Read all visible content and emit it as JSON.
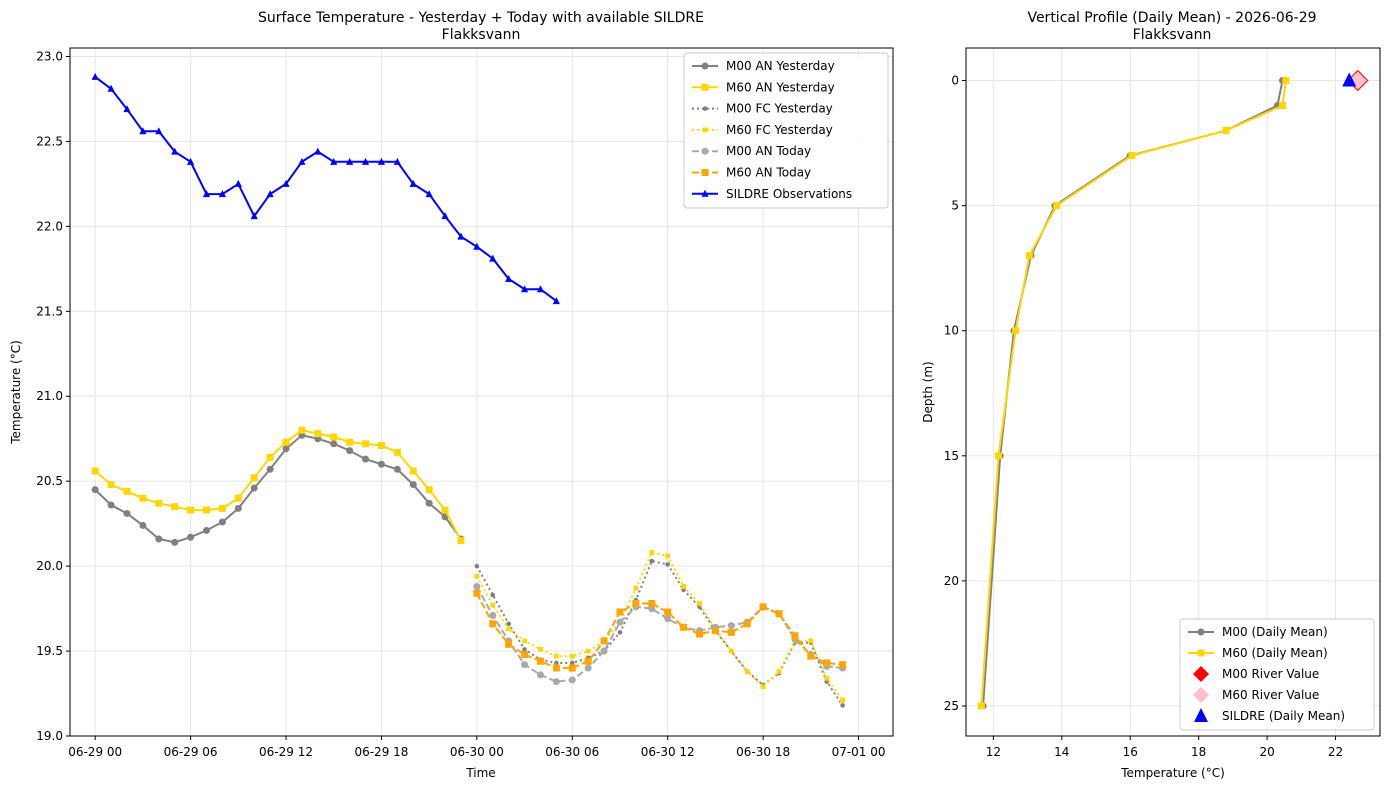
{
  "chart_data": [
    {
      "type": "line",
      "title": "Surface Temperature - Yesterday + Today with available SILDRE",
      "subtitle": "Flakksvann",
      "xlabel": "Time",
      "ylabel": "Temperature (°C)",
      "xlim": [
        "2026-06-28T22:25",
        "2026-07-01T02:10"
      ],
      "ylim": [
        19.0,
        23.05
      ],
      "xticks": [
        "06-29 00",
        "06-29 06",
        "06-29 12",
        "06-29 18",
        "06-30 00",
        "06-30 06",
        "06-30 12",
        "06-30 18",
        "07-01 00"
      ],
      "yticks": [
        "19.0",
        "19.5",
        "20.0",
        "20.5",
        "21.0",
        "21.5",
        "22.0",
        "22.5",
        "23.0"
      ],
      "grid": true,
      "legend": "top-right",
      "series": [
        {
          "name": "M00 AN Yesterday",
          "color": "#808080",
          "style": "solid",
          "marker": "circle",
          "x": [
            "2026-06-29T00:00",
            "2026-06-29T01:00",
            "2026-06-29T02:00",
            "2026-06-29T03:00",
            "2026-06-29T04:00",
            "2026-06-29T05:00",
            "2026-06-29T06:00",
            "2026-06-29T07:00",
            "2026-06-29T08:00",
            "2026-06-29T09:00",
            "2026-06-29T10:00",
            "2026-06-29T11:00",
            "2026-06-29T12:00",
            "2026-06-29T13:00",
            "2026-06-29T14:00",
            "2026-06-29T15:00",
            "2026-06-29T16:00",
            "2026-06-29T17:00",
            "2026-06-29T18:00",
            "2026-06-29T19:00",
            "2026-06-29T20:00",
            "2026-06-29T21:00",
            "2026-06-29T22:00",
            "2026-06-29T23:00"
          ],
          "y": [
            20.45,
            20.36,
            20.31,
            20.24,
            20.16,
            20.14,
            20.17,
            20.21,
            20.26,
            20.34,
            20.46,
            20.57,
            20.69,
            20.77,
            20.75,
            20.72,
            20.68,
            20.63,
            20.6,
            20.57,
            20.48,
            20.37,
            20.29,
            20.16
          ]
        },
        {
          "name": "M60 AN Yesterday",
          "color": "#FFD700",
          "style": "solid",
          "marker": "square",
          "x": [
            "2026-06-29T00:00",
            "2026-06-29T01:00",
            "2026-06-29T02:00",
            "2026-06-29T03:00",
            "2026-06-29T04:00",
            "2026-06-29T05:00",
            "2026-06-29T06:00",
            "2026-06-29T07:00",
            "2026-06-29T08:00",
            "2026-06-29T09:00",
            "2026-06-29T10:00",
            "2026-06-29T11:00",
            "2026-06-29T12:00",
            "2026-06-29T13:00",
            "2026-06-29T14:00",
            "2026-06-29T15:00",
            "2026-06-29T16:00",
            "2026-06-29T17:00",
            "2026-06-29T18:00",
            "2026-06-29T19:00",
            "2026-06-29T20:00",
            "2026-06-29T21:00",
            "2026-06-29T22:00",
            "2026-06-29T23:00"
          ],
          "y": [
            20.56,
            20.48,
            20.44,
            20.4,
            20.37,
            20.35,
            20.33,
            20.33,
            20.34,
            20.4,
            20.52,
            20.64,
            20.73,
            20.8,
            20.78,
            20.76,
            20.73,
            20.72,
            20.71,
            20.67,
            20.56,
            20.45,
            20.33,
            20.15
          ]
        },
        {
          "name": "M00 FC Yesterday",
          "color": "#808080",
          "style": "dotted",
          "marker": "small-circle",
          "x": [
            "2026-06-30T00:00",
            "2026-06-30T01:00",
            "2026-06-30T02:00",
            "2026-06-30T03:00",
            "2026-06-30T04:00",
            "2026-06-30T05:00",
            "2026-06-30T06:00",
            "2026-06-30T07:00",
            "2026-06-30T08:00",
            "2026-06-30T09:00",
            "2026-06-30T10:00",
            "2026-06-30T11:00",
            "2026-06-30T12:00",
            "2026-06-30T13:00",
            "2026-06-30T14:00",
            "2026-06-30T15:00",
            "2026-06-30T16:00",
            "2026-06-30T17:00",
            "2026-06-30T18:00",
            "2026-06-30T19:00",
            "2026-06-30T20:00",
            "2026-06-30T21:00",
            "2026-06-30T22:00",
            "2026-06-30T23:00"
          ],
          "y": [
            20.0,
            19.83,
            19.66,
            19.51,
            19.45,
            19.43,
            19.43,
            19.46,
            19.5,
            19.61,
            19.8,
            20.03,
            20.01,
            19.86,
            19.76,
            19.62,
            19.5,
            19.38,
            19.3,
            19.37,
            19.55,
            19.55,
            19.32,
            19.18
          ]
        },
        {
          "name": "M60 FC Yesterday",
          "color": "#FFD700",
          "style": "dotted",
          "marker": "small-square",
          "x": [
            "2026-06-30T00:00",
            "2026-06-30T01:00",
            "2026-06-30T02:00",
            "2026-06-30T03:00",
            "2026-06-30T04:00",
            "2026-06-30T05:00",
            "2026-06-30T06:00",
            "2026-06-30T07:00",
            "2026-06-30T08:00",
            "2026-06-30T09:00",
            "2026-06-30T10:00",
            "2026-06-30T11:00",
            "2026-06-30T12:00",
            "2026-06-30T13:00",
            "2026-06-30T14:00",
            "2026-06-30T15:00",
            "2026-06-30T16:00",
            "2026-06-30T17:00",
            "2026-06-30T18:00",
            "2026-06-30T19:00",
            "2026-06-30T20:00",
            "2026-06-30T21:00",
            "2026-06-30T22:00",
            "2026-06-30T23:00"
          ],
          "y": [
            19.94,
            19.77,
            19.63,
            19.56,
            19.51,
            19.47,
            19.47,
            19.5,
            19.56,
            19.67,
            19.87,
            20.08,
            20.06,
            19.88,
            19.78,
            19.63,
            19.5,
            19.38,
            19.29,
            19.38,
            19.56,
            19.56,
            19.34,
            19.21
          ]
        },
        {
          "name": "M00 AN Today",
          "color": "#A9A9A9",
          "style": "dashed",
          "marker": "circle",
          "x": [
            "2026-06-30T00:00",
            "2026-06-30T01:00",
            "2026-06-30T02:00",
            "2026-06-30T03:00",
            "2026-06-30T04:00",
            "2026-06-30T05:00",
            "2026-06-30T06:00",
            "2026-06-30T07:00",
            "2026-06-30T08:00",
            "2026-06-30T09:00",
            "2026-06-30T10:00",
            "2026-06-30T11:00",
            "2026-06-30T12:00",
            "2026-06-30T13:00",
            "2026-06-30T14:00",
            "2026-06-30T15:00",
            "2026-06-30T16:00",
            "2026-06-30T17:00",
            "2026-06-30T18:00",
            "2026-06-30T19:00",
            "2026-06-30T20:00",
            "2026-06-30T21:00",
            "2026-06-30T22:00",
            "2026-06-30T23:00"
          ],
          "y": [
            19.88,
            19.71,
            19.56,
            19.42,
            19.36,
            19.32,
            19.33,
            19.4,
            19.5,
            19.67,
            19.76,
            19.75,
            19.69,
            19.64,
            19.62,
            19.64,
            19.65,
            19.67,
            19.76,
            19.72,
            19.57,
            19.48,
            19.41,
            19.4
          ]
        },
        {
          "name": "M60 AN Today",
          "color": "#FFA500",
          "style": "dashed",
          "marker": "square",
          "x": [
            "2026-06-30T00:00",
            "2026-06-30T01:00",
            "2026-06-30T02:00",
            "2026-06-30T03:00",
            "2026-06-30T04:00",
            "2026-06-30T05:00",
            "2026-06-30T06:00",
            "2026-06-30T07:00",
            "2026-06-30T08:00",
            "2026-06-30T09:00",
            "2026-06-30T10:00",
            "2026-06-30T11:00",
            "2026-06-30T12:00",
            "2026-06-30T13:00",
            "2026-06-30T14:00",
            "2026-06-30T15:00",
            "2026-06-30T16:00",
            "2026-06-30T17:00",
            "2026-06-30T18:00",
            "2026-06-30T19:00",
            "2026-06-30T20:00",
            "2026-06-30T21:00",
            "2026-06-30T22:00",
            "2026-06-30T23:00"
          ],
          "y": [
            19.84,
            19.66,
            19.54,
            19.48,
            19.44,
            19.4,
            19.4,
            19.44,
            19.56,
            19.73,
            19.78,
            19.78,
            19.73,
            19.64,
            19.6,
            19.62,
            19.61,
            19.66,
            19.76,
            19.72,
            19.59,
            19.47,
            19.43,
            19.42
          ]
        },
        {
          "name": "SILDRE Observations",
          "color": "#0000FF",
          "style": "solid",
          "marker": "triangle",
          "x": [
            "2026-06-29T00:00",
            "2026-06-29T01:00",
            "2026-06-29T02:00",
            "2026-06-29T03:00",
            "2026-06-29T04:00",
            "2026-06-29T05:00",
            "2026-06-29T06:00",
            "2026-06-29T07:00",
            "2026-06-29T08:00",
            "2026-06-29T09:00",
            "2026-06-29T10:00",
            "2026-06-29T11:00",
            "2026-06-29T12:00",
            "2026-06-29T13:00",
            "2026-06-29T14:00",
            "2026-06-29T15:00",
            "2026-06-29T16:00",
            "2026-06-29T17:00",
            "2026-06-29T18:00",
            "2026-06-29T19:00",
            "2026-06-29T20:00",
            "2026-06-29T21:00",
            "2026-06-29T22:00",
            "2026-06-29T23:00",
            "2026-06-30T00:00",
            "2026-06-30T01:00",
            "2026-06-30T02:00",
            "2026-06-30T03:00",
            "2026-06-30T04:00",
            "2026-06-30T05:00"
          ],
          "y": [
            22.88,
            22.81,
            22.69,
            22.56,
            22.56,
            22.44,
            22.38,
            22.19,
            22.19,
            22.25,
            22.06,
            22.19,
            22.25,
            22.38,
            22.44,
            22.38,
            22.38,
            22.38,
            22.38,
            22.38,
            22.25,
            22.19,
            22.06,
            21.94,
            21.88,
            21.81,
            21.69,
            21.63,
            21.63,
            21.56
          ]
        }
      ]
    },
    {
      "type": "line",
      "title": "Vertical Profile (Daily Mean) - 2026-06-29",
      "subtitle": "Flakksvann",
      "xlabel": "Temperature (°C)",
      "ylabel": "Depth (m)",
      "xlim": [
        11.2,
        23.3
      ],
      "ylim": [
        26.2,
        -1.3
      ],
      "y_inverted": true,
      "xticks": [
        "12",
        "14",
        "16",
        "18",
        "20",
        "22"
      ],
      "yticks": [
        "0",
        "5",
        "10",
        "15",
        "20",
        "25"
      ],
      "grid": true,
      "legend": "bottom-right",
      "series": [
        {
          "name": "M00 (Daily Mean)",
          "color": "#808080",
          "style": "solid",
          "marker": "circle",
          "x": [
            20.45,
            20.3,
            18.8,
            16.0,
            13.8,
            13.1,
            12.6,
            12.2,
            11.7
          ],
          "y": [
            0,
            1,
            2,
            3,
            5,
            7,
            10,
            15,
            25
          ]
        },
        {
          "name": "M60 (Daily Mean)",
          "color": "#FFD700",
          "style": "solid",
          "marker": "square",
          "x": [
            20.55,
            20.45,
            18.8,
            16.05,
            13.85,
            13.05,
            12.65,
            12.15,
            11.65
          ],
          "y": [
            0,
            1,
            2,
            3,
            5,
            7,
            10,
            15,
            25
          ]
        },
        {
          "name": "M00 River Value",
          "color": "#FF0000",
          "style": "none",
          "marker": "diamond",
          "x": [
            22.65
          ],
          "y": [
            0
          ]
        },
        {
          "name": "M60 River Value",
          "color": "#FFC0CB",
          "style": "none",
          "marker": "diamond",
          "x": [
            22.65
          ],
          "y": [
            0
          ]
        },
        {
          "name": "SILDRE (Daily Mean)",
          "color": "#0000FF",
          "style": "none",
          "marker": "triangle",
          "x": [
            22.4
          ],
          "y": [
            0
          ]
        }
      ]
    }
  ]
}
